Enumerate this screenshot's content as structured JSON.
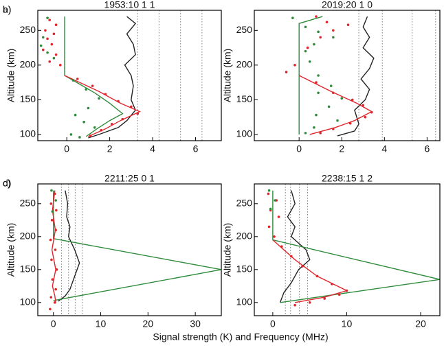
{
  "xlabel": "Signal strength (K) and Frequency (MHz)",
  "chart_data": [
    {
      "type": "line",
      "label": "a)",
      "title": "1953:10 1 1",
      "ylabel": "Altitude (km)",
      "xlim": [
        -1.35,
        7.2
      ],
      "xticks": [
        0,
        2,
        4,
        6
      ],
      "ylim": [
        91,
        279
      ],
      "yticks": [
        100,
        150,
        200,
        250
      ],
      "vlines": [
        3.3,
        4.3,
        5.3,
        6.3
      ],
      "series": [
        {
          "style": "line",
          "color": "#222222",
          "x": [
            2.8,
            3.2,
            2.8,
            3.1,
            3.2,
            2.7,
            3.0,
            3.1,
            3.0,
            3.2,
            2.8,
            2.4,
            1.5,
            1.0
          ],
          "y": [
            270,
            260,
            245,
            230,
            215,
            200,
            185,
            170,
            150,
            135,
            120,
            110,
            100,
            95
          ]
        },
        {
          "style": "line",
          "color": "#2e8b3a",
          "x": [
            -0.1,
            -0.1,
            1.3,
            2.0,
            2.6,
            2.0,
            1.4,
            0.9
          ],
          "y": [
            270,
            185,
            160,
            145,
            130,
            120,
            108,
            97
          ]
        },
        {
          "style": "line",
          "color": "#e0242a",
          "x": [
            -0.1,
            1.5,
            2.5,
            3.4,
            2.5,
            1.8,
            1.0
          ],
          "y": [
            185,
            162,
            145,
            133,
            120,
            108,
            97
          ]
        },
        {
          "style": "dots",
          "color": "#e0242a",
          "x": [
            -0.8,
            -0.5,
            -1.0,
            -0.6,
            -0.9,
            -0.7,
            -1.1,
            -0.5,
            -0.8,
            -0.3,
            0.5,
            1.2,
            1.8,
            2.4,
            3.0,
            3.3,
            2.6,
            2.1,
            1.6,
            1.1
          ],
          "y": [
            265,
            258,
            250,
            245,
            238,
            230,
            222,
            215,
            205,
            200,
            180,
            170,
            158,
            148,
            140,
            130,
            122,
            115,
            106,
            98
          ]
        },
        {
          "style": "dots",
          "color": "#2e8b3a",
          "x": [
            -0.9,
            -1.1,
            -1.2,
            -0.9,
            -0.6,
            0.3,
            0.9,
            1.5,
            1.0,
            0.4,
            0.8,
            1.3,
            0.2,
            0.6
          ],
          "y": [
            268,
            240,
            228,
            218,
            210,
            178,
            165,
            152,
            138,
            128,
            118,
            110,
            100,
            96
          ]
        }
      ]
    },
    {
      "type": "line",
      "label": "b)",
      "title": "2019:20 1 0",
      "ylabel": "Altitude (km)",
      "xlim": [
        -2.1,
        6.6
      ],
      "xticks": [
        0,
        2,
        4,
        6
      ],
      "ylim": [
        91,
        279
      ],
      "yticks": [
        100,
        150,
        200,
        250
      ],
      "vlines": [
        2.8,
        3.9,
        5.3,
        6.4
      ],
      "series": [
        {
          "style": "line",
          "color": "#222222",
          "x": [
            3.2,
            3.0,
            3.3,
            3.0,
            3.5,
            3.3,
            2.9,
            3.3,
            3.1,
            2.6,
            2.7,
            2.8,
            2.6,
            1.8
          ],
          "y": [
            270,
            255,
            240,
            225,
            210,
            195,
            180,
            165,
            150,
            135,
            125,
            115,
            105,
            98
          ]
        },
        {
          "style": "line",
          "color": "#2e8b3a",
          "x": [
            1.1,
            0,
            0
          ],
          "y": [
            270,
            260,
            100
          ]
        },
        {
          "style": "line",
          "color": "#e0242a",
          "x": [
            0,
            1.5,
            2.7,
            3.4,
            2.6,
            1.7,
            0.5
          ],
          "y": [
            185,
            162,
            145,
            133,
            120,
            110,
            100
          ]
        },
        {
          "style": "dots",
          "color": "#e0242a",
          "x": [
            0.8,
            1.3,
            2.3,
            1.6,
            1.0,
            0.4,
            -0.2,
            -0.6,
            0.8,
            1.6,
            2.5,
            3.0,
            3.4,
            3.1,
            2.4,
            1.6,
            1.0
          ],
          "y": [
            270,
            262,
            258,
            250,
            240,
            225,
            200,
            190,
            175,
            160,
            150,
            142,
            132,
            125,
            116,
            108,
            102
          ]
        },
        {
          "style": "dots",
          "color": "#2e8b3a",
          "x": [
            -0.3,
            0.3,
            0.9,
            1.6,
            0.7,
            0.3,
            0.5,
            0.9,
            1.5,
            0.9,
            2.0,
            1.4,
            0.8,
            1.8,
            0.7,
            0.3
          ],
          "y": [
            268,
            255,
            248,
            240,
            230,
            220,
            205,
            185,
            170,
            160,
            152,
            140,
            128,
            120,
            110,
            102
          ]
        }
      ]
    },
    {
      "type": "line",
      "label": "c)",
      "title": "2211:25 0 1",
      "ylabel": "Altitude (km)",
      "xlim": [
        -3.3,
        35.5
      ],
      "xticks": [
        0,
        10,
        20,
        30
      ],
      "ylim": [
        80,
        280
      ],
      "yticks": [
        100,
        150,
        200,
        250
      ],
      "vlines": [
        1.7,
        3.2,
        4.6,
        6.1
      ],
      "series": [
        {
          "style": "line",
          "color": "#222222",
          "x": [
            2.5,
            3,
            2.8,
            3.5,
            3.2,
            4.5,
            5.5,
            4.5,
            3.5,
            2.5,
            1
          ],
          "y": [
            270,
            250,
            230,
            215,
            200,
            180,
            160,
            140,
            120,
            110,
            102
          ]
        },
        {
          "style": "line",
          "color": "#2e8b3a",
          "x": [
            0,
            0,
            35.5,
            0
          ],
          "y": [
            270,
            197,
            150,
            103
          ]
        },
        {
          "style": "line",
          "color": "#e0242a",
          "x": [
            0.3,
            -0.2,
            0.4,
            -0.3,
            0.5,
            -0.2,
            0.3,
            0.5
          ],
          "y": [
            270,
            240,
            210,
            180,
            150,
            125,
            110,
            100
          ]
        },
        {
          "style": "dots",
          "color": "#e0242a",
          "x": [
            0.3,
            -0.5,
            0.6,
            -0.3,
            0.5,
            -0.6,
            0.4,
            -0.4,
            0.7,
            -0.2,
            0.5,
            -0.5,
            0.3,
            -0.7
          ],
          "y": [
            265,
            250,
            240,
            225,
            210,
            195,
            180,
            165,
            150,
            135,
            120,
            108,
            100,
            90
          ]
        },
        {
          "style": "dots",
          "color": "#2e8b3a",
          "x": [
            -0.4,
            0.5,
            -0.2
          ],
          "y": [
            270,
            255,
            238
          ]
        }
      ]
    },
    {
      "type": "line",
      "label": "d)",
      "title": "2238:15 1 2",
      "ylabel": "Altitude (km)",
      "xlim": [
        -2.5,
        22.6
      ],
      "xticks": [
        0,
        10,
        20
      ],
      "ylim": [
        80,
        280
      ],
      "yticks": [
        100,
        150,
        200,
        250
      ],
      "vlines": [
        1.7,
        2.4,
        3.6,
        4.7
      ],
      "series": [
        {
          "style": "line",
          "color": "#222222",
          "x": [
            2.5,
            3,
            2.0,
            3.0,
            2.5,
            4.5,
            5,
            3.5,
            2.5,
            1.5,
            1
          ],
          "y": [
            270,
            250,
            230,
            215,
            200,
            180,
            165,
            150,
            130,
            115,
            100
          ]
        },
        {
          "style": "line",
          "color": "#2e8b3a",
          "x": [
            0,
            0,
            22.6,
            1
          ],
          "y": [
            270,
            195,
            135,
            100
          ]
        },
        {
          "style": "line",
          "color": "#e0242a",
          "x": [
            0,
            3,
            6,
            10,
            7,
            3
          ],
          "y": [
            195,
            165,
            140,
            118,
            108,
            100
          ]
        },
        {
          "style": "dots",
          "color": "#e0242a",
          "x": [
            -0.6,
            0.5,
            -0.3,
            0.8,
            -0.5,
            0.2,
            1.2,
            2.5,
            4.0,
            6.0,
            8.0,
            10.0,
            9.0,
            7.0,
            5.0,
            3.0
          ],
          "y": [
            265,
            255,
            240,
            230,
            215,
            200,
            185,
            170,
            155,
            140,
            128,
            118,
            112,
            106,
            100,
            96
          ]
        },
        {
          "style": "dots",
          "color": "#2e8b3a",
          "x": [
            -0.5,
            0.3,
            -0.3
          ],
          "y": [
            270,
            255,
            242
          ]
        }
      ]
    }
  ]
}
